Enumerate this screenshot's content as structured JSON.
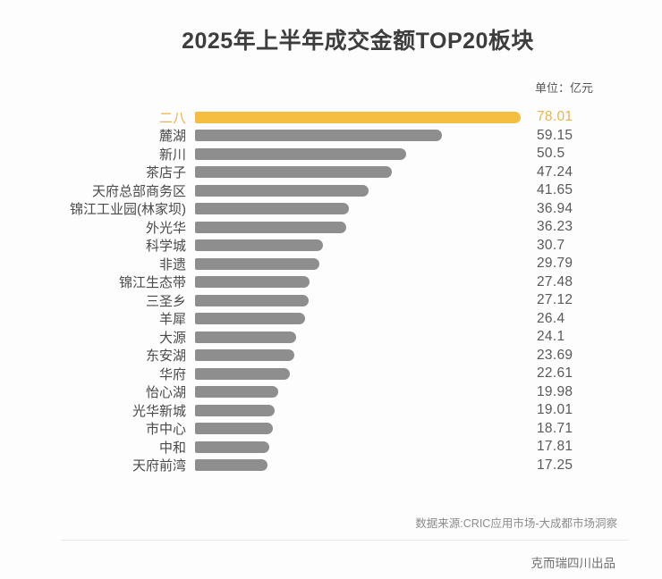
{
  "page": {
    "title": "2025年上半年成交金额TOP20板块",
    "unit_label": "单位：亿元",
    "source": "数据来源:CRIC应用市场-大成都市场洞察",
    "footer": "克而瑞四川出品"
  },
  "colors": {
    "highlight_bar": "#F5BE41",
    "highlight_text": "#E8B54A",
    "bar": "#8E8E8E",
    "label_text": "#4A4A4A",
    "value_text": "#595959",
    "title_text": "#3D3D3D"
  },
  "chart_data": {
    "type": "bar",
    "orientation": "horizontal",
    "title": "2025年上半年成交金额TOP20板块",
    "unit": "亿元",
    "categories": [
      "二八",
      "麓湖",
      "新川",
      "茶店子",
      "天府总部商务区",
      "锦江工业园(林家坝)",
      "外光华",
      "科学城",
      "非遗",
      "锦江生态带",
      "三圣乡",
      "羊犀",
      "大源",
      "东安湖",
      "华府",
      "怡心湖",
      "光华新城",
      "市中心",
      "中和",
      "天府前湾"
    ],
    "values": [
      78.01,
      59.15,
      50.5,
      47.24,
      41.65,
      36.94,
      36.23,
      30.7,
      29.79,
      27.48,
      27.12,
      26.4,
      24.1,
      23.69,
      22.61,
      19.98,
      19.01,
      18.71,
      17.81,
      17.25
    ],
    "xlim": [
      0,
      78.01
    ],
    "highlight_index": 0,
    "value_labels_shown": true,
    "grid": false,
    "legend": false,
    "source": "数据来源:CRIC应用市场-大成都市场洞察",
    "publisher": "克而瑞四川出品"
  }
}
